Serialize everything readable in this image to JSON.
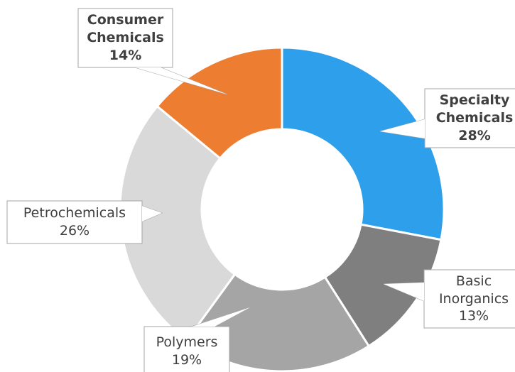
{
  "chart_data": {
    "type": "donut",
    "categories": [
      "Specialty Chemicals",
      "Basic Inorganics",
      "Polymers",
      "Petrochemicals",
      "Consumer Chemicals"
    ],
    "values": [
      28,
      13,
      19,
      26,
      14
    ],
    "value_labels": [
      "28%",
      "13%",
      "19%",
      "26%",
      "14%"
    ],
    "colors": [
      "#2e9fea",
      "#7f7f7f",
      "#a5a5a5",
      "#d9d9d9",
      "#ed7d31"
    ]
  }
}
